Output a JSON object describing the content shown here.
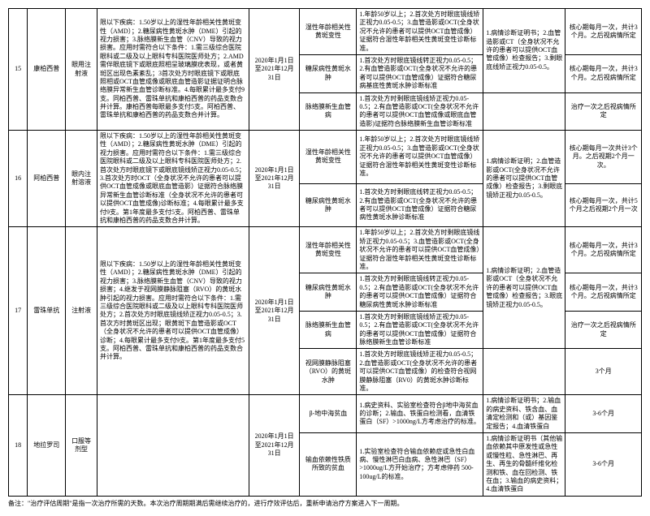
{
  "rows": [
    {
      "num": "15",
      "name": "康柏西普",
      "form": "眼用注射液",
      "desc": "限以下疾病：1.50岁以上的湿性年龄相关性黄斑变性（AMD）；2.糖尿病性黄斑水肿（DME）引起的视力损害；3.脉络膜新生血管（CNV）导致的视力损害。应用时需符合以下条件：1.需三级综合医院眼科或二级及以上眼科专科医院医师处方；2.AMD需伴眼底镜下或眼底照相呈玻璃膜疣表现，或者黄斑区出现色素紊乱；3首次处方时眼底镜下或眼底照相或OCT血管成像或眼底血管造影证据证明合脉络膜异常新生血管诊断标准。4.每眼累计最多支付9支。同柏西普、雷珠单抗和康柏西普的药品支数合并计算。康柏西普每眼最多支付5支。阿柏西普、雷珠单抗和康柏西普的药品支数合并计算。",
      "date": "2020年1月1日至2021年12月31日",
      "subs": [
        {
          "cond": "湿性年龄相关性黄斑变性",
          "detail": "1.年龄50岁以上；2.首次处方时眼底镜线矫正视力0.05-0.5；3.血管造影或OCT(全身状况不允许的患者可以提供OCT血管成像）证据符合湿性年龄相关性黄斑变性诊断标准。",
          "note": "1.病情诊断证明书；2.血管造影或CT（全身状况不允许的患者可以提供OCT血管成像）检查报告；3.剩眼底线矫正视力0.05-0.5。",
          "note_rowspan": 2,
          "period": "核心期每月一次，共计3个月。之后视病情所定"
        },
        {
          "cond": "糖尿病性黄斑水肿",
          "detail": "1.首次处方时眼底镜线转正视力0.05-0.5；2.有血管造影或OCT(全身状况不允许的患者可以提供OCT血管成像）证据符合糖尿病基底性黄斑水肿诊断标准",
          "note_skip": true,
          "period": "核心期每月一次，共计3个月。之后视病情所定"
        },
        {
          "cond": "脉络膜新生血管病",
          "detail": "1.首次处方时剩眼底镜线矫正视力0.05-0.5；2.有血管造影或OCT(全身状况不允许的患者可以提供OCT血管成像或眼底血管造影)证据符合脉络膜新生血管诊断标准",
          "note": "",
          "period": "治疗一次之后视病情所定"
        }
      ]
    },
    {
      "num": "16",
      "name": "阿柏西普",
      "form": "眼内注射溶液",
      "desc": "限以下疾病：1.50岁以上的湿性年龄相关性黄斑变性（AMD）；2.糖尿病性黄斑水肿（DME）引起的视力损害。应用时需符合以下条件：1.需三级综合医院眼科或二级及以上眼科专科医院医师处方；2.首次处方时眼底镜下或眼底镜线矫正视力0.05-0.5；3.首次处方时OCT（全身状况不允许的患者可以提供OCT血管成像或眼底血管造影）证据符合脉络膜异常新生血管诊断标准（全身状况不允许的患者可以提供OCT血管成像)诊断标准；4.每眼累计最多支付9支。第1年度最多支付5支。阿柏西普、雷珠单抗和康柏西普的药品支数合并计算。",
      "date": "2020年1月1日至2021年12月31日",
      "subs": [
        {
          "cond": "湿性年龄相关性黄斑变性",
          "detail": "1.年龄50岁以上；2.首次处方时眼底镜线矫正视力0.05-0.5；3.血管造影或OCT(全身状况不允许的患者可以提供OCT血管成像）证据符合湿性年龄相关性黄斑变性诊断标准。",
          "note": "1.病情诊断证明；2.血管造影或OCT(全身状况不允许的患者可以提供OCT血管成像）检查报告；3.剩眼底镜矫正视力0.05-0.5。",
          "note_rowspan": 2,
          "period": "核心期每月一次共计3个月。之后视期2个月一次。"
        },
        {
          "cond": "糖尿病性黄斑水肿",
          "detail": "1.首次处方时剩眼底线转正视力0.05-0.5；2.有血管造影或OCT(全身状况不允许的患者可以提供OCT血管成像）证据符合糖尿病性黄斑水肿诊断标准",
          "note_skip": true,
          "period": "核心期每月一次，共计5个月之后视期2个月一次"
        }
      ]
    },
    {
      "num": "17",
      "name": "雷珠单抗",
      "form": "注射液",
      "desc": "限以下疾病：1.50岁以上的湿性年龄相关性黄斑变性（AMD）；2.糖尿病性黄斑水肿（DME）引起的视力损害；3.脉络膜新生血管（CNV）导致的视力损害；4.继发于视网膜静脉阻塞（RVO）的黄斑水肿引起的视力损害。应用时需符合以下条件：1.需三级综合医院眼科或二级及以上眼科专科医院医师处方；2.首次处方时眼底镜线矫正视力0.05-0.5；3.首次方时黄斑区出现；眼黄斑下血管造影或OCT（全身状况不允许的患者可以提供OCT血管成像）诊断；4.每眼累计最多支付9支。第1年度最多支付5支。阿柏西普、雷珠单抗和康柏西普的药品支数合并计算。",
      "date": "2020年1月1日至2021年12月31日",
      "subs": [
        {
          "cond": "湿性年龄相关性黄斑变性",
          "detail": "1.年龄50岁以上；2.首次处方时剩眼底镜线矫正视力0.05-0.5；3.血管造影或OCT(全身状况不允许的患者可以提供OCT血管成像）证据符合湿性年龄相关性黄斑变性诊断标准。",
          "note": "1.病情诊断证明；2.血管造影或OCT（全身状况不允许的患者可以提供OCT血管成像）检查报告；3.眼底镜矫正视力0.05-0.5。",
          "note_rowspan": 3,
          "period": "核心期每月一次，共计3个月。之后视病情所定"
        },
        {
          "cond": "糖尿病性黄斑水肿",
          "detail": "1.首次处方时剩眼底镜线转正视力0.05-0.5；2.有血管造影或OCT(全身状况不允许的患者可以提供OCT血管成像）证据符合糖尿病性黄斑水肿诊断标准",
          "note_skip": true,
          "period": "核心期每月一次，共计3个月。之后视病情所定"
        },
        {
          "cond": "脉络膜新生血管病",
          "detail": "1.首次处方时剩眼底镜线矫正视力0.05-0.5；2.有血管造影或OCT(全身状况不允许的患者可以提供OCT血管成像）证据符合脉络膜新生血管诊断标准",
          "note_skip": true,
          "period": "治疗一次之后视病情所定"
        },
        {
          "cond": "视网膜静脉阻塞（RVO）的黄斑水肿",
          "detail": "1.首次处方时眼底镜线矫正视力0.05-0.5；2.血管造影或OCT(全身状况不允许的患者可以提供OCT血管成像）的检查符合视网膜静脉阻塞（RV0）的黄斑水肿诊断标准。",
          "note": "",
          "period": "3个月"
        }
      ]
    },
    {
      "num": "18",
      "name": "地拉罗司",
      "form": "口服等剂型",
      "desc": "",
      "date": "2020年1月1日至2021年12月31日",
      "subs": [
        {
          "cond": "β-地中海贫血",
          "detail": "1.病史资料、实验室检查符合β地中海贫血的诊断；2.输血、铁蛋白检测看，血清铁蛋白（SF）>1000ng/L方考虑治疗的标准。",
          "note": "1.病情诊断证明书；2.输血的病史资料、铁含血、血清定检测和（或）基因鉴定报告；4.血清铁蛋白",
          "period": "3-6个月"
        },
        {
          "cond": "输血依赖性铁质所致的贫血",
          "detail": "1.实验室检查符合输血依赖症或急性白血病、慢性淋巴白血病、急性淋巴（SF）>1000ug/L方开始治疗；方考虑停药 500-100ug/L的标准。",
          "note": "1.病情诊断证明书（其他输血依赖其中原发性或急性或慢性粒、急性淋巴、再生、再生的骨髓纤维化检测和铁、血在回检测、铁在血；3.输血的病史资料；4.血清铁蛋白",
          "period": "3-6个月"
        }
      ]
    }
  ],
  "footnote": "备注：\"治疗评估周期\"是指一次治疗所需的天数。本次治疗周期期满后需继续治疗的，进行疗效评估后，重新申请治疗方案进入下一周期。"
}
